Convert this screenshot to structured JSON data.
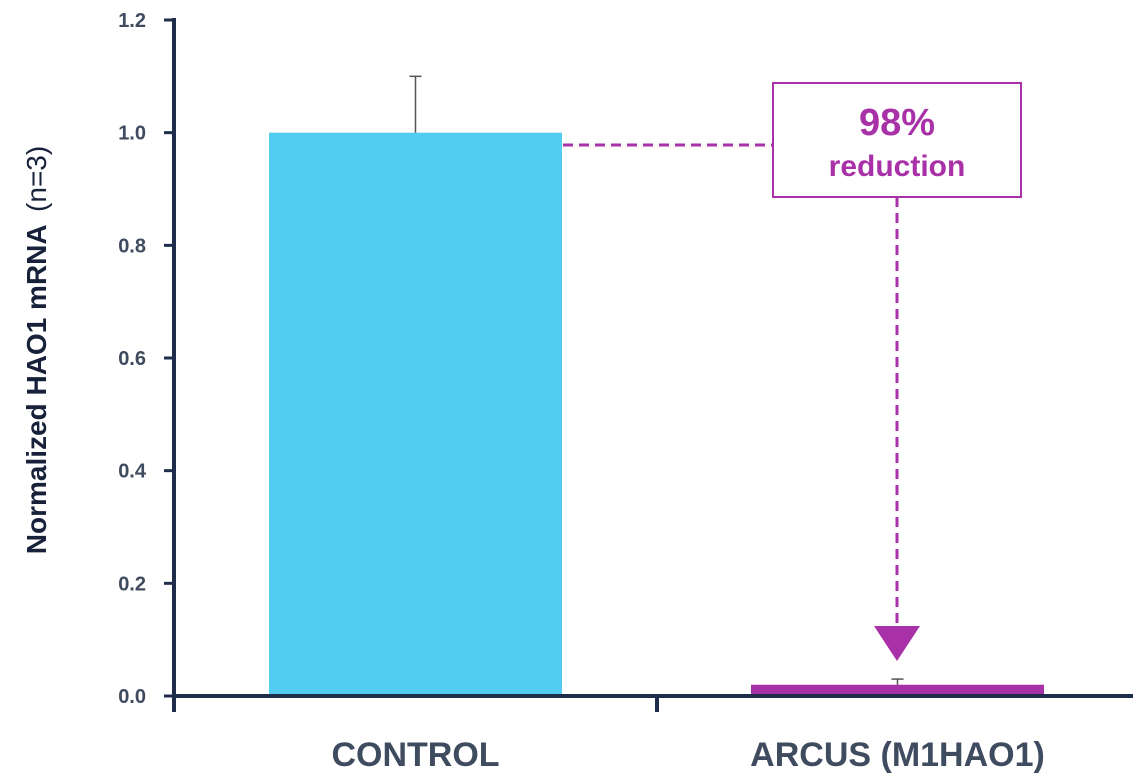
{
  "chart_data": {
    "type": "bar",
    "categories": [
      "CONTROL",
      "ARCUS (M1HAO1)"
    ],
    "values": [
      1.0,
      0.02
    ],
    "error_bars": [
      0.1,
      0.01
    ],
    "ylabel_main": "Normalized HAO1 mRNA",
    "ylabel_sub": "(n=3)",
    "ylim": [
      0,
      1.2
    ],
    "yticks": [
      "0.0",
      "0.2",
      "0.4",
      "0.6",
      "0.8",
      "1.0",
      "1.2"
    ],
    "grid": false,
    "annotation": {
      "value": "98%",
      "label": "reduction"
    },
    "colors": {
      "control_bar": "#52ccf0",
      "treated_bar": "#a931a8",
      "axis": "#1f2d4a",
      "annotation": "#a931a8"
    }
  }
}
